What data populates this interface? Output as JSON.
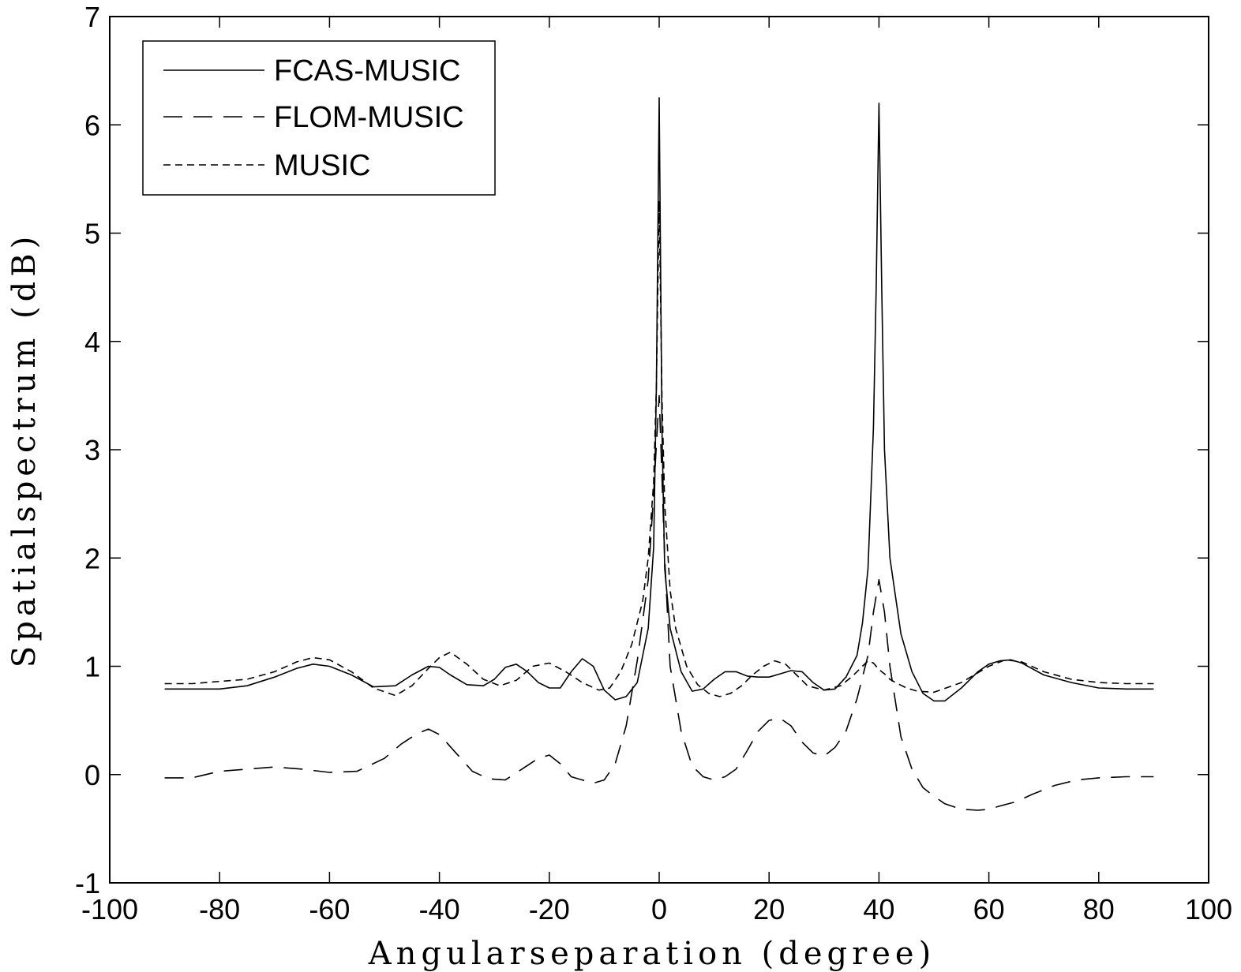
{
  "chart_data": {
    "type": "line",
    "title": "",
    "xlabel": "Angularseparation (degree)",
    "ylabel": "Spatialspectrum (dB)",
    "xlim": [
      -100,
      100
    ],
    "ylim": [
      -1,
      7
    ],
    "xticks": [
      -100,
      -80,
      -60,
      -40,
      -20,
      0,
      20,
      40,
      60,
      80,
      100
    ],
    "yticks": [
      -1,
      0,
      1,
      2,
      3,
      4,
      5,
      6,
      7
    ],
    "grid": false,
    "legend_position": "top-left",
    "series": [
      {
        "name": "FCAS-MUSIC",
        "style": "solid",
        "x": [
          -90,
          -80,
          -75,
          -70,
          -66,
          -63,
          -60,
          -56,
          -52,
          -48,
          -45,
          -42,
          -40,
          -38,
          -35,
          -32,
          -30,
          -28,
          -26,
          -24,
          -22,
          -20,
          -18,
          -16,
          -14,
          -12,
          -10,
          -8,
          -6,
          -4,
          -2,
          -1,
          -0.5,
          0,
          0.5,
          1,
          2,
          4,
          6,
          8,
          10,
          12,
          14,
          16,
          18,
          20,
          22,
          24,
          26,
          28,
          30,
          32,
          34,
          36,
          37,
          38,
          39,
          39.5,
          40,
          40.5,
          41,
          42,
          44,
          46,
          48,
          50,
          52,
          55,
          58,
          60,
          62,
          64,
          66,
          70,
          75,
          80,
          85,
          90
        ],
        "values": [
          0.79,
          0.79,
          0.82,
          0.9,
          0.98,
          1.02,
          1.0,
          0.92,
          0.81,
          0.82,
          0.92,
          1.0,
          0.99,
          0.92,
          0.83,
          0.82,
          0.88,
          0.99,
          1.02,
          0.95,
          0.85,
          0.8,
          0.8,
          0.95,
          1.07,
          1.0,
          0.78,
          0.69,
          0.72,
          0.85,
          1.35,
          2.1,
          3.6,
          6.25,
          3.2,
          1.9,
          1.35,
          0.95,
          0.77,
          0.79,
          0.88,
          0.95,
          0.95,
          0.91,
          0.9,
          0.9,
          0.93,
          0.96,
          0.95,
          0.85,
          0.78,
          0.79,
          0.9,
          1.1,
          1.4,
          1.9,
          3.2,
          4.5,
          6.2,
          4.5,
          3.0,
          2.0,
          1.3,
          0.95,
          0.75,
          0.68,
          0.68,
          0.8,
          0.95,
          1.02,
          1.05,
          1.06,
          1.03,
          0.92,
          0.85,
          0.8,
          0.79,
          0.79
        ]
      },
      {
        "name": "FLOM-MUSIC",
        "style": "longdash",
        "x": [
          -90,
          -85,
          -80,
          -75,
          -70,
          -65,
          -60,
          -55,
          -50,
          -47,
          -44,
          -42,
          -40,
          -37,
          -34,
          -31,
          -28,
          -25,
          -22,
          -20,
          -18,
          -16,
          -14,
          -12,
          -10,
          -8,
          -6,
          -4,
          -2,
          -1,
          0,
          1,
          2,
          4,
          6,
          8,
          10,
          12,
          14,
          16,
          18,
          20,
          22,
          24,
          26,
          28,
          30,
          32,
          34,
          36,
          38,
          39,
          40,
          41,
          42,
          44,
          46,
          48,
          50,
          52,
          55,
          58,
          60,
          62,
          65,
          68,
          72,
          76,
          80,
          85,
          90
        ],
        "values": [
          -0.03,
          -0.03,
          0.03,
          0.05,
          0.07,
          0.05,
          0.02,
          0.03,
          0.15,
          0.28,
          0.38,
          0.42,
          0.37,
          0.2,
          0.03,
          -0.04,
          -0.05,
          0.05,
          0.15,
          0.18,
          0.1,
          -0.02,
          -0.05,
          -0.08,
          -0.05,
          0.1,
          0.45,
          1.05,
          1.8,
          2.6,
          3.5,
          2.0,
          1.0,
          0.4,
          0.08,
          -0.02,
          -0.05,
          -0.02,
          0.05,
          0.22,
          0.4,
          0.5,
          0.52,
          0.45,
          0.3,
          0.2,
          0.17,
          0.25,
          0.4,
          0.7,
          1.1,
          1.5,
          1.8,
          1.5,
          1.0,
          0.35,
          0.05,
          -0.12,
          -0.2,
          -0.27,
          -0.32,
          -0.33,
          -0.32,
          -0.29,
          -0.25,
          -0.18,
          -0.1,
          -0.05,
          -0.03,
          -0.02,
          -0.02
        ]
      },
      {
        "name": "MUSIC",
        "style": "shortdash",
        "x": [
          -90,
          -85,
          -80,
          -75,
          -70,
          -66,
          -63,
          -60,
          -56,
          -52,
          -48,
          -45,
          -42,
          -40,
          -38,
          -35,
          -32,
          -29,
          -26,
          -23,
          -20,
          -17,
          -14,
          -11,
          -9,
          -7,
          -5,
          -3,
          -2,
          -1,
          -0.5,
          0,
          0.5,
          1,
          2,
          3,
          5,
          7,
          9,
          11,
          13,
          15,
          17,
          19,
          21,
          23,
          25,
          27,
          30,
          33,
          35,
          37,
          38,
          39,
          40,
          41,
          42,
          43,
          45,
          47,
          50,
          55,
          60,
          63,
          66,
          70,
          75,
          80,
          85,
          90
        ],
        "values": [
          0.84,
          0.84,
          0.86,
          0.88,
          0.95,
          1.04,
          1.08,
          1.06,
          0.95,
          0.8,
          0.73,
          0.82,
          0.98,
          1.08,
          1.13,
          1.02,
          0.88,
          0.82,
          0.87,
          1.0,
          1.03,
          0.95,
          0.85,
          0.78,
          0.8,
          0.95,
          1.2,
          1.6,
          2.0,
          2.7,
          3.6,
          5.3,
          3.5,
          2.5,
          1.7,
          1.35,
          1.0,
          0.83,
          0.75,
          0.72,
          0.75,
          0.82,
          0.92,
          1.0,
          1.05,
          1.02,
          0.92,
          0.82,
          0.78,
          0.82,
          0.9,
          1.0,
          1.05,
          1.03,
          0.97,
          0.93,
          0.88,
          0.85,
          0.8,
          0.77,
          0.76,
          0.85,
          1.0,
          1.06,
          1.04,
          0.95,
          0.88,
          0.85,
          0.84,
          0.84
        ]
      }
    ]
  }
}
